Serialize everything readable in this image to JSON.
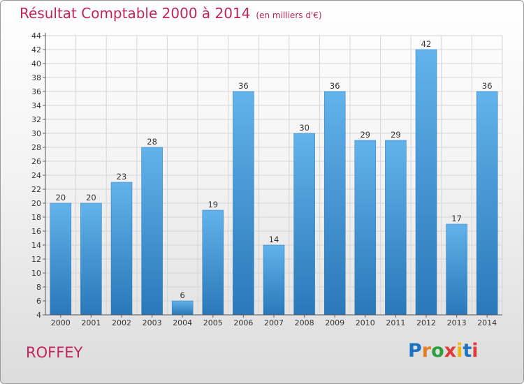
{
  "header": {
    "title": "Résultat Comptable 2000 à 2014",
    "subtitle": "(en milliers d'€)"
  },
  "footer": {
    "commune": "ROFFEY",
    "logo_text": "Proxiti",
    "logo_colors": [
      "#1d73c2",
      "#e67e22",
      "#2e9e3e",
      "#e03a3a",
      "#f2b705",
      "#1d73c2",
      "#e03a3a"
    ]
  },
  "colors": {
    "bar_light": "#62b2ec",
    "bar_dark": "#2a78b8",
    "grid": "#d6d6d6",
    "title": "#c0245c"
  },
  "chart_data": {
    "type": "bar",
    "title": "Résultat Comptable 2000 à 2014",
    "subtitle": "(en milliers d'€)",
    "categories": [
      "2000",
      "2001",
      "2002",
      "2003",
      "2004",
      "2005",
      "2006",
      "2007",
      "2008",
      "2009",
      "2010",
      "2011",
      "2012",
      "2013",
      "2014"
    ],
    "values": [
      20,
      20,
      23,
      28,
      6,
      19,
      36,
      14,
      30,
      36,
      29,
      29,
      42,
      17,
      36
    ],
    "ylim": [
      4,
      44
    ],
    "yticks": [
      4,
      6,
      8,
      10,
      12,
      14,
      16,
      18,
      20,
      22,
      24,
      26,
      28,
      30,
      32,
      34,
      36,
      38,
      40,
      42,
      44
    ],
    "grid": true,
    "legend": "none"
  }
}
